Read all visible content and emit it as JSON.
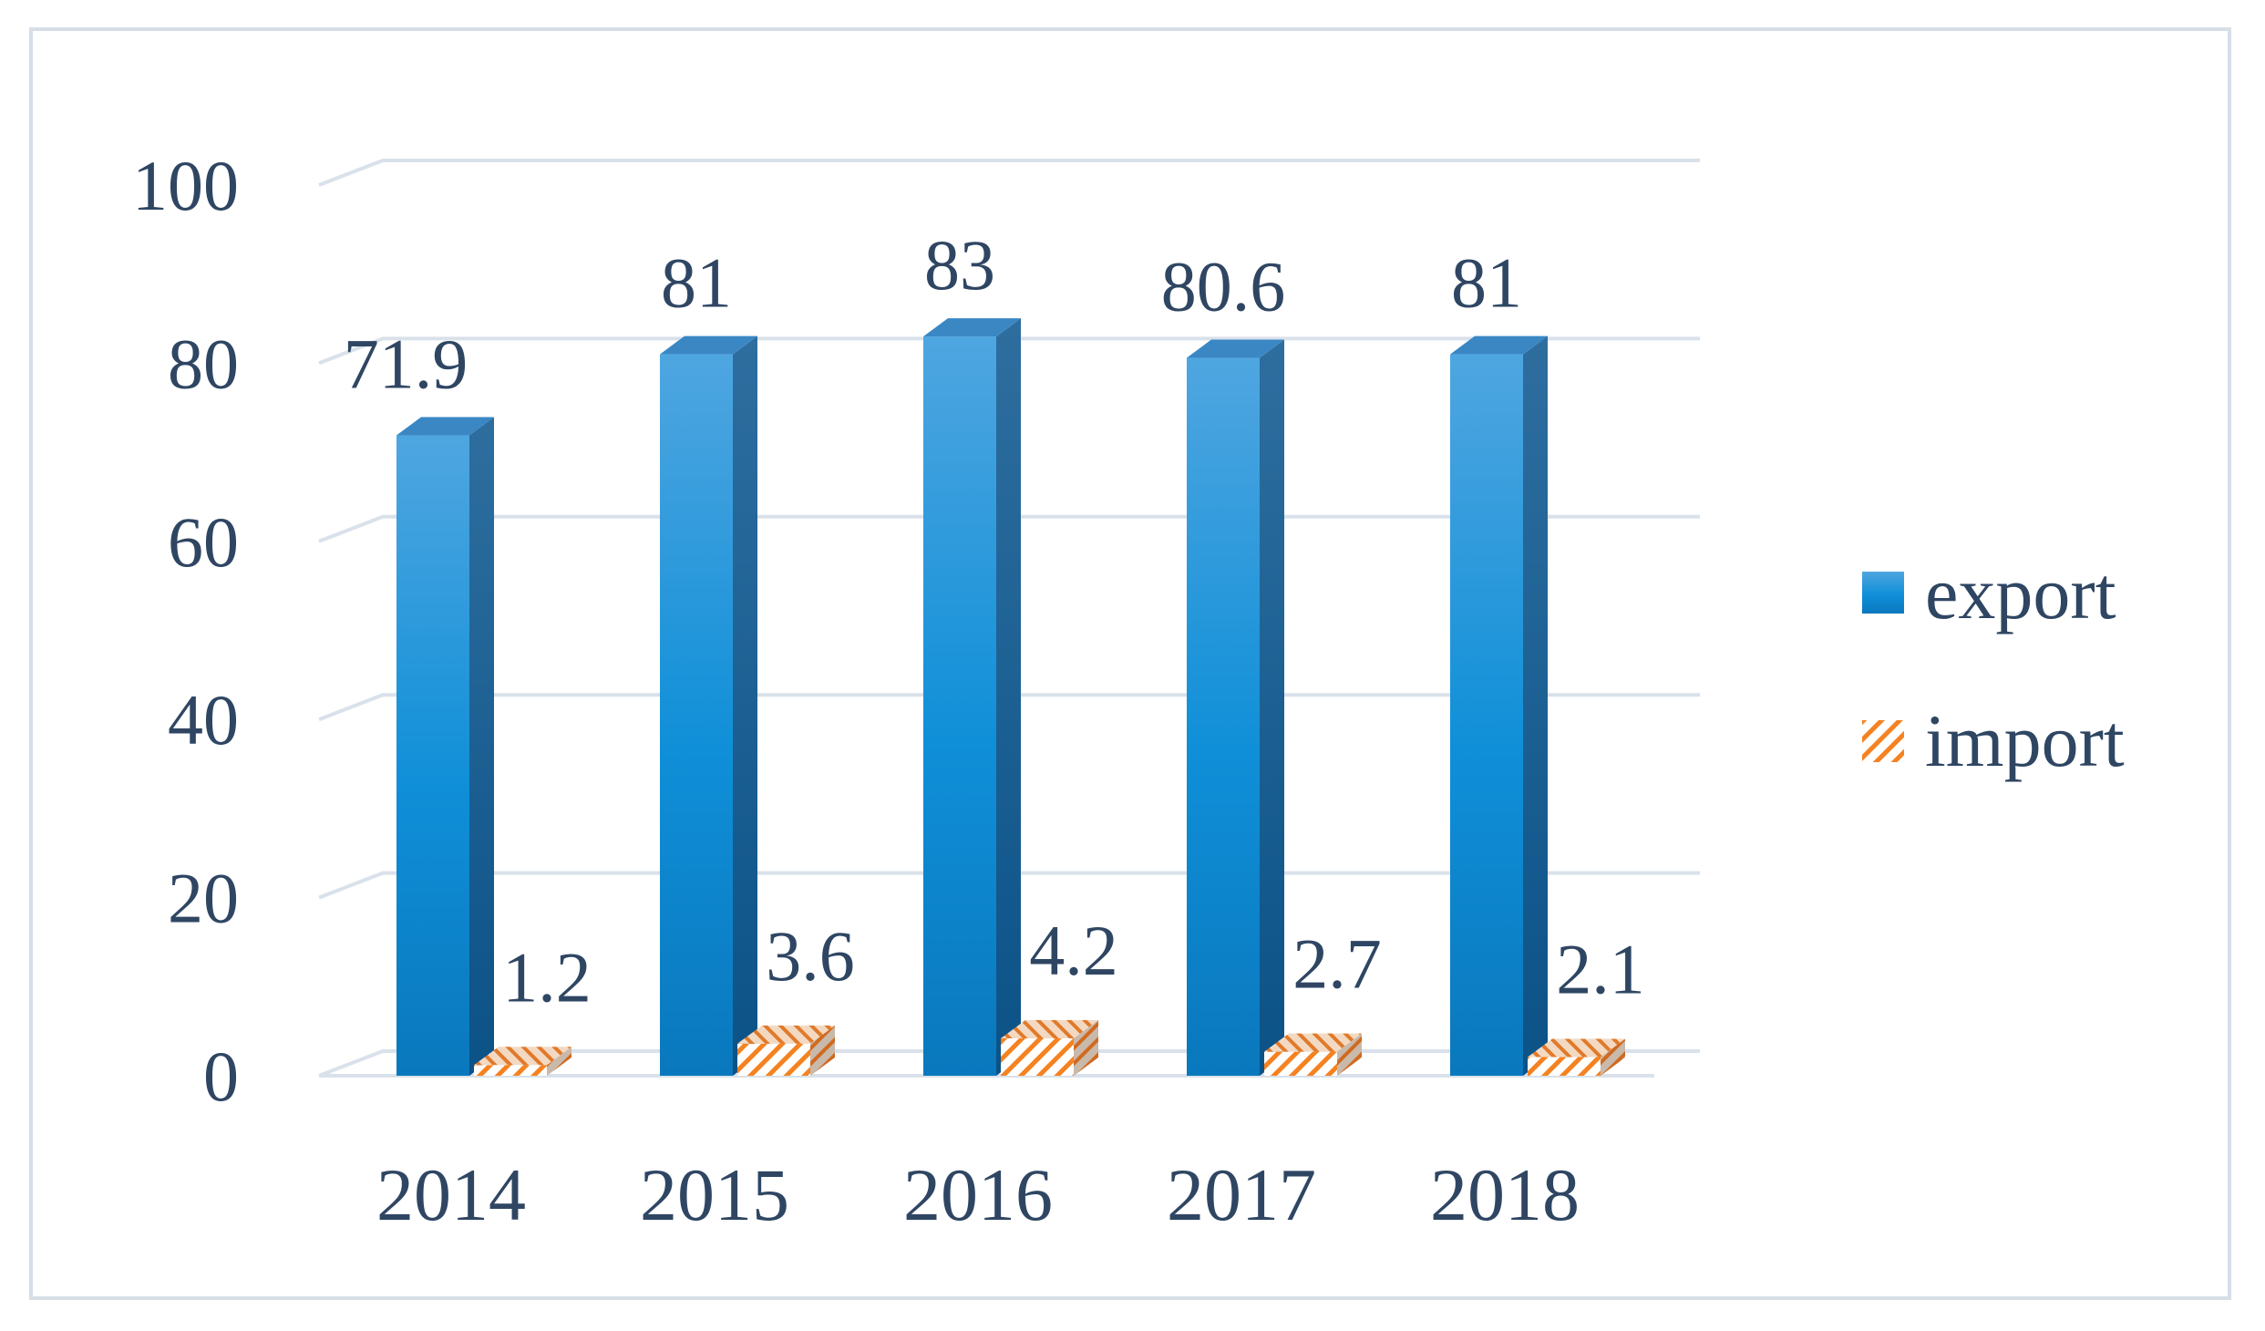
{
  "chart_data": {
    "type": "bar",
    "categories": [
      "2014",
      "2015",
      "2016",
      "2017",
      "2018"
    ],
    "series": [
      {
        "name": "export",
        "values": [
          71.9,
          81,
          83,
          80.6,
          81
        ],
        "labels": [
          "71.9",
          "81",
          "83",
          "80.6",
          "81"
        ]
      },
      {
        "name": "import",
        "values": [
          1.2,
          3.6,
          4.2,
          2.7,
          2.1
        ],
        "labels": [
          "1.2",
          "3.6",
          "4.2",
          "2.7",
          "2.1"
        ]
      }
    ],
    "y_ticks": [
      "0",
      "20",
      "40",
      "60",
      "80",
      "100"
    ],
    "ylim": [
      0,
      100
    ],
    "grid": true,
    "legend_position": "right",
    "style": "3d-column"
  },
  "colors": {
    "export": "#1a8ed6",
    "import": "#f58220",
    "grid": "#d9e1ea",
    "text": "#2f4663"
  }
}
